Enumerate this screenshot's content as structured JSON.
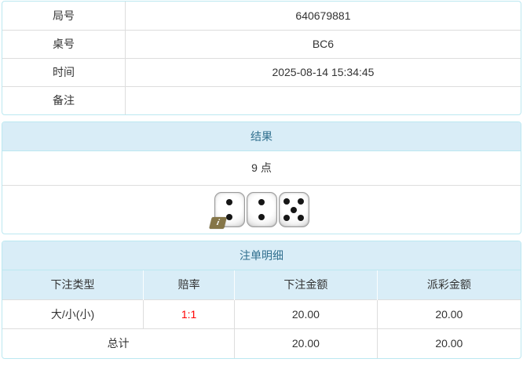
{
  "info_table": {
    "rows": [
      {
        "label": "局号",
        "value": "640679881"
      },
      {
        "label": "桌号",
        "value": "BC6"
      },
      {
        "label": "时间",
        "value": "2025-08-14 15:34:45"
      },
      {
        "label": "备注",
        "value": ""
      }
    ]
  },
  "result_panel": {
    "title": "结果",
    "points": "9 点",
    "dice": [
      2,
      2,
      5
    ],
    "info_badge": "i"
  },
  "bets_panel": {
    "title": "注单明细",
    "columns": [
      "下注类型",
      "赔率",
      "下注金额",
      "派彩金额"
    ],
    "rows": [
      {
        "type": "大/小(小)",
        "odds": "1:1",
        "bet": "20.00",
        "payout": "20.00"
      }
    ],
    "total_label": "总计",
    "total_bet": "20.00",
    "total_payout": "20.00"
  },
  "colors": {
    "panel_border": "#bce8f1",
    "heading_bg": "#d9edf7",
    "heading_text": "#31708f",
    "cell_border": "#dddddd",
    "body_text": "#333333",
    "odds_red": "#ff0000",
    "info_badge_bg": "#857648",
    "pip": "#161616"
  }
}
